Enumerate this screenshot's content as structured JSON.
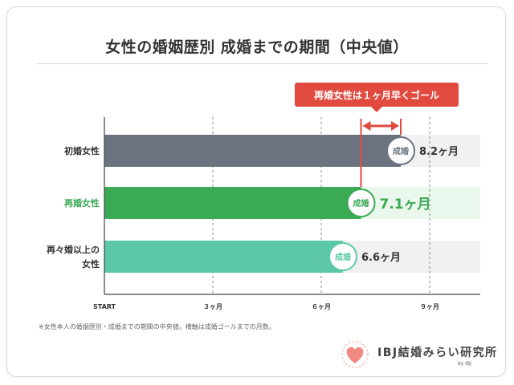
{
  "title": "女性の婚姻歴別 成婚までの期間（中央値）",
  "footnote": "※女性本人の婚姻歴別・成婚までの期間の中央値。横軸は成婚ゴールまでの月数。",
  "logo": {
    "text": "IBJ結婚みらい研究所",
    "by": "by IBJ",
    "icon": "heart-icon"
  },
  "colors": {
    "first": "#6b737e",
    "remarriage": "#3aaa55",
    "third": "#5cc7a9",
    "callout": "#e04a3f",
    "text": "#333333"
  },
  "chart_data": {
    "type": "bar",
    "orientation": "horizontal",
    "title": "女性の婚姻歴別 成婚までの期間（中央値）",
    "categories": [
      "初婚女性",
      "再婚女性",
      "再々婚以上の女性"
    ],
    "values": [
      8.2,
      7.1,
      6.6
    ],
    "value_labels": [
      "8.2ヶ月",
      "7.1ヶ月",
      "6.6ヶ月"
    ],
    "marker_label": "成婚",
    "x_ticks": [
      {
        "value": 0,
        "label": "START"
      },
      {
        "value": 3,
        "label": "３ヶ月"
      },
      {
        "value": 6,
        "label": "６ヶ月"
      },
      {
        "value": 9,
        "label": "９ヶ月"
      }
    ],
    "xlim": [
      0,
      10.4
    ],
    "grid": "dashed vertical",
    "annotation": {
      "text": "再婚女性は１ヶ月早くゴール",
      "from": 7.1,
      "to": 8.2
    }
  }
}
